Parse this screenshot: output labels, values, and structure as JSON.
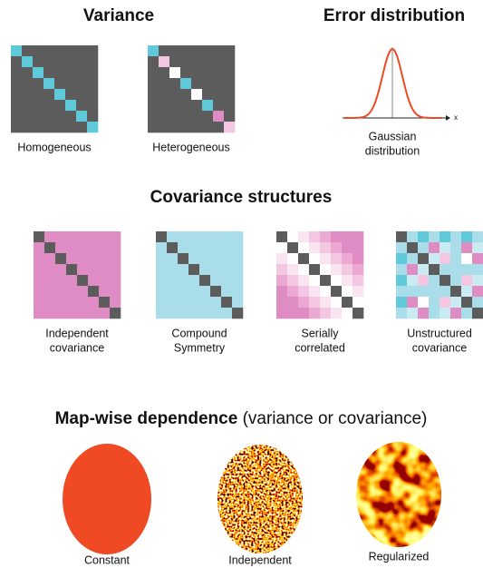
{
  "variance": {
    "title": "Variance",
    "items": [
      {
        "label": "Homogeneous"
      },
      {
        "label": "Heterogeneous"
      }
    ]
  },
  "error_distribution": {
    "title": "Error distribution",
    "axis_label": "x",
    "label": [
      "Gaussian",
      "distribution"
    ]
  },
  "covariance": {
    "title": "Covariance structures",
    "items": [
      {
        "label": [
          "Independent",
          "covariance"
        ]
      },
      {
        "label": [
          "Compound",
          "Symmetry"
        ]
      },
      {
        "label": [
          "Serially",
          "correlated"
        ]
      },
      {
        "label": [
          "Unstructured",
          "covariance"
        ]
      }
    ]
  },
  "map_wise": {
    "title_bold": "Map-wise dependence",
    "title_rest": "(variance or covariance)",
    "items": [
      {
        "label": "Constant"
      },
      {
        "label": "Independent"
      },
      {
        "label": "Regularized"
      }
    ]
  }
}
